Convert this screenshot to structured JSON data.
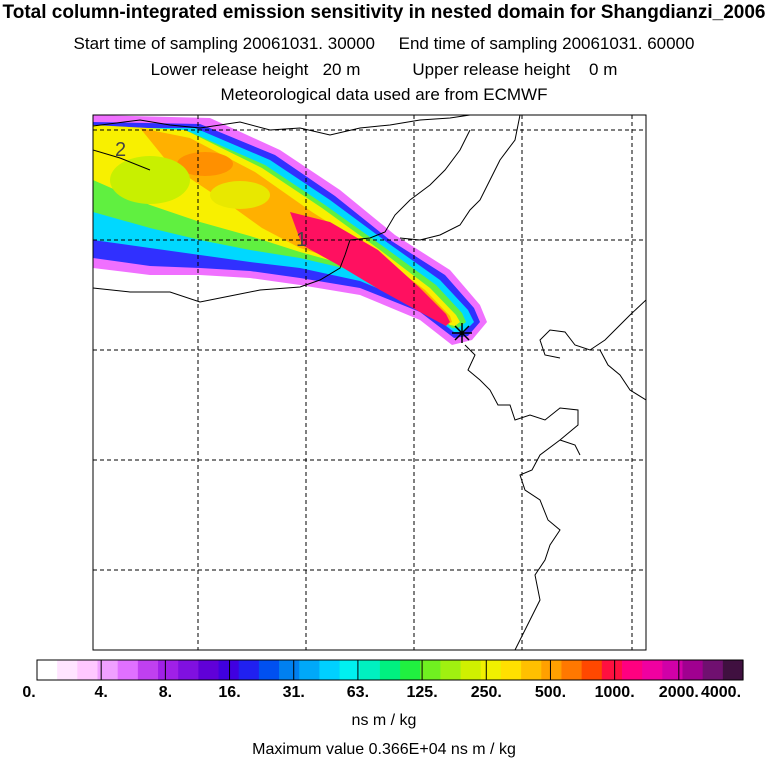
{
  "titles": {
    "line1": "Total column-integrated emission sensitivity in nested domain for Shangdianzi_2006",
    "start": "Start time of sampling 20061031. 30000",
    "end": "End time of sampling 20061031. 60000",
    "lower": "Lower release height   20 m",
    "upper": "Upper release height    0 m",
    "met": "Meteorological data used are from ECMWF"
  },
  "map": {
    "labels": [
      "2",
      "1"
    ],
    "release_marker": "star-icon"
  },
  "colorbar": {
    "tick_labels": [
      "0.",
      "4.",
      "8.",
      "16.",
      "31.",
      "63.",
      "125.",
      "250.",
      "500.",
      "1000.",
      "2000.",
      "4000."
    ],
    "colors": [
      "#ffffff",
      "#ffe4ff",
      "#ffc8ff",
      "#f0a0ff",
      "#e070ff",
      "#c040f0",
      "#a020e8",
      "#8010e0",
      "#6000d8",
      "#4000e0",
      "#2020f0",
      "#0050f0",
      "#0080f0",
      "#00a8f8",
      "#00d0ff",
      "#00f0f0",
      "#00f0c0",
      "#00f080",
      "#20f040",
      "#70f020",
      "#a0f010",
      "#d0f000",
      "#f0f000",
      "#ffe000",
      "#ffc000",
      "#ffa000",
      "#ff7800",
      "#ff4800",
      "#ff1040",
      "#ff0080",
      "#f000a0",
      "#d000a8",
      "#a00090",
      "#701070",
      "#401040"
    ],
    "units": "ns m / kg",
    "max_value_text": "Maximum value  0.366E+04 ns m / kg"
  }
}
